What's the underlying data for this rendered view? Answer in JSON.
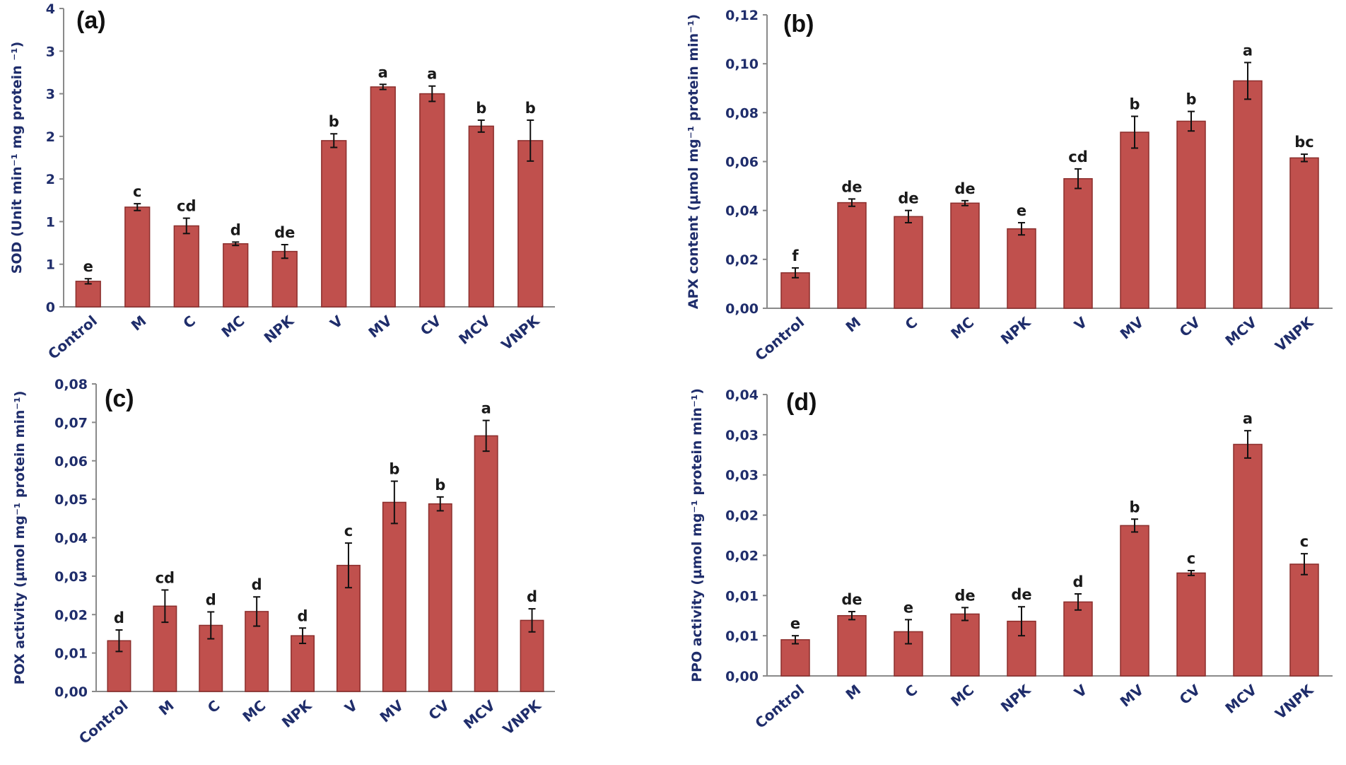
{
  "chart_data": [
    {
      "panel": "(a)",
      "type": "bar",
      "ylabel": "SOD (Unit min⁻¹ mg protein ⁻¹)",
      "ylim": [
        0,
        3.5
      ],
      "yticks": [
        "0",
        "1",
        "1",
        "2",
        "2",
        "3",
        "3",
        "4"
      ],
      "categories": [
        "Control",
        "M",
        "C",
        "MC",
        "NPK",
        "V",
        "MV",
        "CV",
        "MCV",
        "VNPK"
      ],
      "values": [
        0.3,
        1.17,
        0.95,
        0.74,
        0.65,
        1.95,
        2.58,
        2.5,
        2.12,
        1.95
      ],
      "errors": [
        0.03,
        0.04,
        0.09,
        0.02,
        0.08,
        0.08,
        0.03,
        0.09,
        0.07,
        0.24
      ],
      "letters": [
        "e",
        "c",
        "cd",
        "d",
        "de",
        "b",
        "a",
        "a",
        "b",
        "b"
      ]
    },
    {
      "panel": "(b)",
      "type": "bar",
      "ylabel": "APX content (µmol mg⁻¹ protein min⁻¹)",
      "ylim": [
        0,
        0.12
      ],
      "yticks": [
        "0,00",
        "0,02",
        "0,04",
        "0,06",
        "0,08",
        "0,10",
        "0,12"
      ],
      "categories": [
        "Control",
        "M",
        "C",
        "MC",
        "NPK",
        "V",
        "MV",
        "CV",
        "MCV",
        "VNPK"
      ],
      "values": [
        0.0145,
        0.0432,
        0.0375,
        0.043,
        0.0325,
        0.053,
        0.072,
        0.0765,
        0.093,
        0.0615
      ],
      "errors": [
        0.002,
        0.0015,
        0.0025,
        0.001,
        0.0025,
        0.004,
        0.0065,
        0.004,
        0.0075,
        0.0015
      ],
      "letters": [
        "f",
        "de",
        "de",
        "de",
        "e",
        "cd",
        "b",
        "b",
        "a",
        "bc"
      ]
    },
    {
      "panel": "(c)",
      "type": "bar",
      "ylabel": "POX activity (µmol mg⁻¹ protein min⁻¹)",
      "ylim": [
        0,
        0.08
      ],
      "yticks": [
        "0,00",
        "0,01",
        "0,02",
        "0,03",
        "0,04",
        "0,05",
        "0,06",
        "0,07",
        "0,08"
      ],
      "categories": [
        "Control",
        "M",
        "C",
        "MC",
        "NPK",
        "V",
        "MV",
        "CV",
        "MCV",
        "VNPK"
      ],
      "values": [
        0.0132,
        0.0222,
        0.0172,
        0.0208,
        0.0145,
        0.0328,
        0.0492,
        0.0488,
        0.0665,
        0.0185
      ],
      "errors": [
        0.0028,
        0.0042,
        0.0035,
        0.0038,
        0.002,
        0.0058,
        0.0055,
        0.0018,
        0.004,
        0.003
      ],
      "letters": [
        "d",
        "cd",
        "d",
        "d",
        "d",
        "c",
        "b",
        "b",
        "a",
        "d"
      ]
    },
    {
      "panel": "(d)",
      "type": "bar",
      "ylabel": "PPO activity (µmol mg⁻¹ protein min⁻¹)",
      "ylim": [
        0,
        0.035
      ],
      "yticks": [
        "0,00",
        "0,01",
        "0,01",
        "0,02",
        "0,02",
        "0,03",
        "0,03",
        "0,04"
      ],
      "categories": [
        "Control",
        "M",
        "C",
        "MC",
        "NPK",
        "V",
        "MV",
        "CV",
        "MCV",
        "VNPK"
      ],
      "values": [
        0.0045,
        0.0075,
        0.0055,
        0.0077,
        0.0068,
        0.0092,
        0.0187,
        0.0128,
        0.0288,
        0.0139
      ],
      "errors": [
        0.0005,
        0.0005,
        0.0015,
        0.0008,
        0.0018,
        0.001,
        0.0008,
        0.0003,
        0.0017,
        0.0013
      ],
      "letters": [
        "e",
        "de",
        "e",
        "de",
        "de",
        "d",
        "b",
        "c",
        "a",
        "c"
      ]
    }
  ]
}
